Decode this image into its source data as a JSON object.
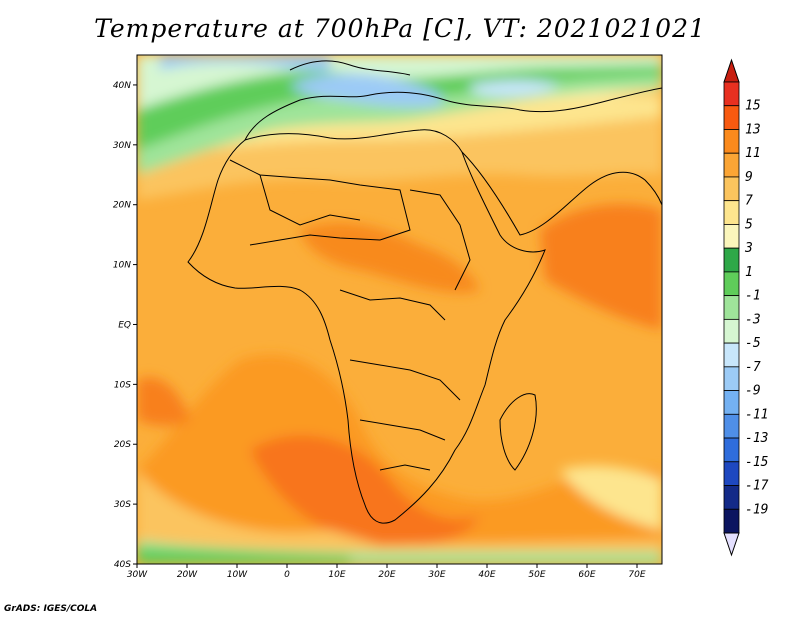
{
  "title": "Temperature at 700hPa [C], VT: 2021021021",
  "credit": "GrADS: IGES/COLA",
  "map": {
    "lon_range": [
      -30,
      75
    ],
    "lat_range": [
      -40,
      45
    ],
    "lat_ticks": [
      {
        "value": 40,
        "label": "40N"
      },
      {
        "value": 30,
        "label": "30N"
      },
      {
        "value": 20,
        "label": "20N"
      },
      {
        "value": 10,
        "label": "10N"
      },
      {
        "value": 0,
        "label": "EQ"
      },
      {
        "value": -10,
        "label": "10S"
      },
      {
        "value": -20,
        "label": "20S"
      },
      {
        "value": -30,
        "label": "30S"
      },
      {
        "value": -40,
        "label": "40S"
      }
    ],
    "lon_ticks": [
      {
        "value": -30,
        "label": "30W"
      },
      {
        "value": -20,
        "label": "20W"
      },
      {
        "value": -10,
        "label": "10W"
      },
      {
        "value": 0,
        "label": "0"
      },
      {
        "value": 10,
        "label": "10E"
      },
      {
        "value": 20,
        "label": "20E"
      },
      {
        "value": 30,
        "label": "30E"
      },
      {
        "value": 40,
        "label": "40E"
      },
      {
        "value": 50,
        "label": "50E"
      },
      {
        "value": 60,
        "label": "60E"
      },
      {
        "value": 70,
        "label": "70E"
      }
    ]
  },
  "colorbar": {
    "labels": [
      "15",
      "13",
      "11",
      "9",
      "7",
      "5",
      "3",
      "1",
      "-1",
      "-3",
      "-5",
      "-7",
      "-9",
      "-11",
      "-13",
      "-15",
      "-17",
      "-19"
    ],
    "colors": [
      "#e83020",
      "#f85a10",
      "#fb8a1c",
      "#fba535",
      "#fbc45e",
      "#fde58e",
      "#fbf6bc",
      "#2ea848",
      "#5fcd5a",
      "#9fe49a",
      "#d6f6d2",
      "#c8e6fb",
      "#9ccbf6",
      "#74b1f2",
      "#4f8fe8",
      "#2f6ddc",
      "#1e48c0",
      "#132a88",
      "#0c1560"
    ]
  }
}
